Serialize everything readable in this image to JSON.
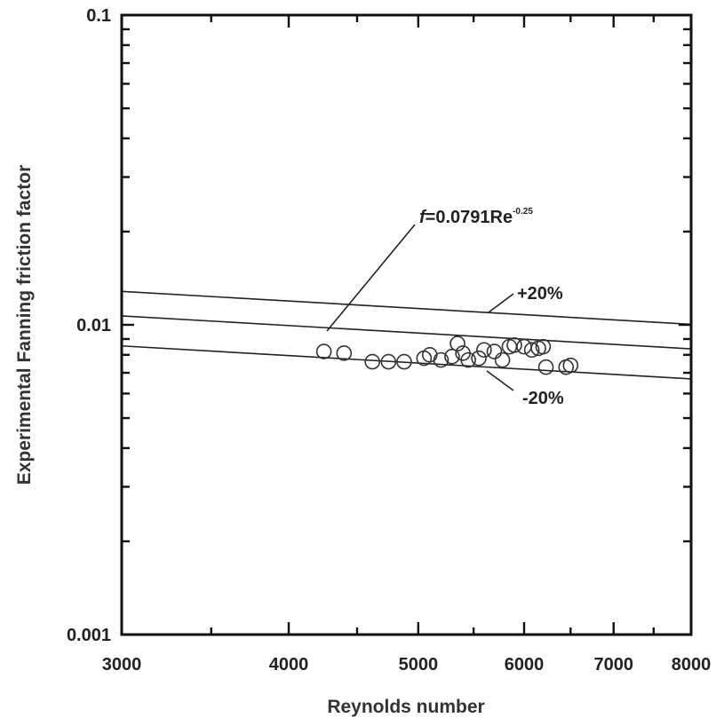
{
  "chart_data": {
    "type": "scatter",
    "title": "",
    "xlabel": "Reynolds number",
    "ylabel": "Experimental Fanning friction factor",
    "x_scale": "log",
    "y_scale": "log",
    "xlim": [
      3000,
      8000
    ],
    "ylim": [
      0.001,
      0.1
    ],
    "x_ticks": [
      3000,
      4000,
      5000,
      6000,
      7000,
      8000
    ],
    "x_tick_labels": [
      "3000",
      "4000",
      "5000",
      "6000",
      "7000",
      "8000"
    ],
    "y_ticks": [
      0.001,
      0.01,
      0.1
    ],
    "y_tick_labels": [
      "0.001",
      "0.01",
      "0.1"
    ],
    "grid": false,
    "legend": "none",
    "series": [
      {
        "marker": "open-circle",
        "points": [
          [
            4250,
            0.0082
          ],
          [
            4400,
            0.0081
          ],
          [
            4620,
            0.0076
          ],
          [
            4750,
            0.0076
          ],
          [
            4880,
            0.0076
          ],
          [
            5050,
            0.0078
          ],
          [
            5100,
            0.008
          ],
          [
            5200,
            0.0077
          ],
          [
            5300,
            0.0079
          ],
          [
            5350,
            0.0087
          ],
          [
            5400,
            0.0081
          ],
          [
            5450,
            0.0077
          ],
          [
            5550,
            0.0078
          ],
          [
            5600,
            0.0083
          ],
          [
            5700,
            0.0082
          ],
          [
            5780,
            0.0077
          ],
          [
            5850,
            0.0085
          ],
          [
            5900,
            0.0086
          ],
          [
            6000,
            0.0085
          ],
          [
            6080,
            0.0083
          ],
          [
            6150,
            0.0084
          ],
          [
            6200,
            0.0085
          ],
          [
            6230,
            0.0073
          ],
          [
            6450,
            0.0073
          ],
          [
            6500,
            0.0074
          ]
        ]
      }
    ],
    "lines": [
      {
        "kind": "correlation",
        "coefficient": 0.0791,
        "exponent": -0.25,
        "factor": 1.0
      },
      {
        "kind": "band",
        "coefficient": 0.0791,
        "exponent": -0.25,
        "factor": 1.2
      },
      {
        "kind": "band",
        "coefficient": 0.0791,
        "exponent": -0.25,
        "factor": 0.8
      }
    ],
    "annotations": {
      "correlation": {
        "prefix": "f",
        "main": "=0.0791Re",
        "sup": "-0.25"
      },
      "upper": "+20%",
      "lower": "-20%"
    }
  }
}
